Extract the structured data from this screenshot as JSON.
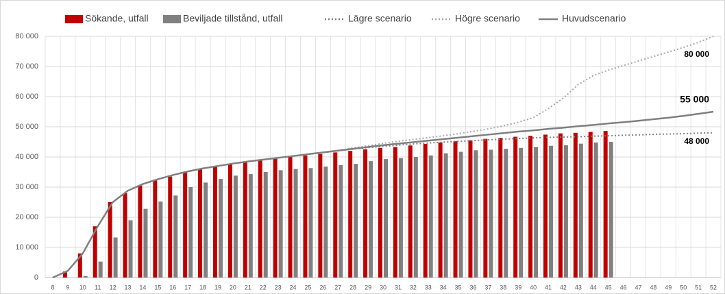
{
  "chart_data": {
    "type": "bar",
    "categories": [
      "8",
      "9",
      "10",
      "11",
      "12",
      "13",
      "14",
      "15",
      "16",
      "17",
      "18",
      "19",
      "20",
      "21",
      "22",
      "23",
      "24",
      "25",
      "26",
      "27",
      "28",
      "29",
      "30",
      "31",
      "32",
      "33",
      "34",
      "35",
      "36",
      "37",
      "38",
      "39",
      "40",
      "41",
      "42",
      "43",
      "44",
      "45",
      "46",
      "47",
      "48",
      "49",
      "50",
      "51",
      "52"
    ],
    "ylim": [
      0,
      80000
    ],
    "yticks": [
      0,
      {
        "value": 10000,
        "label": "10 000"
      },
      {
        "value": 20000,
        "label": "20 000"
      },
      {
        "value": 30000,
        "label": "30 000"
      },
      {
        "value": 40000,
        "label": "40 000"
      },
      {
        "value": 50000,
        "label": "50 000"
      },
      {
        "value": 60000,
        "label": "60 000"
      },
      {
        "value": 70000,
        "label": "70 000"
      },
      {
        "value": 80000,
        "label": "80 000"
      }
    ],
    "grid": true,
    "legend": "top",
    "series": [
      {
        "name": "Sökande, utfall",
        "type": "bar",
        "color": "#c00000",
        "values": [
          null,
          2000,
          8000,
          17000,
          25000,
          28000,
          30500,
          32500,
          33500,
          35000,
          36000,
          37000,
          37800,
          38300,
          39000,
          39500,
          40000,
          40500,
          41000,
          41500,
          42000,
          42500,
          43000,
          43300,
          43800,
          44300,
          44800,
          45200,
          45500,
          46000,
          46300,
          46700,
          47000,
          47400,
          47800,
          48000,
          48300,
          48600,
          null,
          null,
          null,
          null,
          null,
          null,
          null
        ]
      },
      {
        "name": "Beviljade tillstånd, utfall",
        "type": "bar",
        "color": "#808080",
        "values": [
          null,
          0,
          500,
          5300,
          13300,
          19000,
          22800,
          25200,
          27200,
          30000,
          31500,
          32700,
          33800,
          34300,
          35000,
          35600,
          36000,
          36300,
          36800,
          37300,
          37700,
          38600,
          39300,
          39600,
          40000,
          40500,
          41200,
          41700,
          42200,
          42400,
          42700,
          43000,
          43300,
          43700,
          43900,
          44400,
          44800,
          45000,
          null,
          null,
          null,
          null,
          null,
          null,
          null
        ]
      },
      {
        "name": "Lägre scenario",
        "type": "line",
        "line_style": "dotted",
        "color": "#7f7f7f",
        "values": [
          0,
          2200,
          8000,
          17000,
          25000,
          28800,
          31000,
          32600,
          34000,
          35200,
          36200,
          37000,
          37800,
          38500,
          39100,
          39700,
          40300,
          40900,
          41500,
          42000,
          42600,
          43100,
          43500,
          43900,
          44300,
          44600,
          44900,
          45200,
          45400,
          45700,
          45900,
          46100,
          46300,
          46500,
          46600,
          46700,
          46900,
          47000,
          47200,
          47300,
          47500,
          47600,
          47700,
          47900,
          48000
        ],
        "value_labels": [
          null,
          null,
          null,
          null,
          null,
          null,
          null,
          null,
          null,
          null,
          null,
          null,
          null,
          null,
          null,
          null,
          null,
          null,
          null,
          null,
          null,
          null,
          null,
          null,
          null,
          null,
          null,
          null,
          null,
          null,
          null,
          null,
          null,
          null,
          null,
          null,
          null,
          null,
          null,
          null,
          null,
          null,
          null,
          null,
          "48 000"
        ]
      },
      {
        "name": "Högre scenario",
        "type": "line",
        "line_style": "dotted",
        "color": "#a6a6a6",
        "values": [
          0,
          2200,
          8000,
          17000,
          25000,
          28800,
          31000,
          32600,
          34000,
          35200,
          36200,
          37000,
          37800,
          38500,
          39100,
          39700,
          40300,
          40900,
          41500,
          42100,
          43000,
          43700,
          44500,
          45200,
          45800,
          46400,
          47000,
          47700,
          48500,
          49300,
          50300,
          51500,
          53000,
          56000,
          59500,
          64000,
          67000,
          68800,
          70300,
          71800,
          73300,
          74800,
          76300,
          78000,
          80000
        ],
        "value_labels": [
          null,
          null,
          null,
          null,
          null,
          null,
          null,
          null,
          null,
          null,
          null,
          null,
          null,
          null,
          null,
          null,
          null,
          null,
          null,
          null,
          null,
          null,
          null,
          null,
          null,
          null,
          null,
          null,
          null,
          null,
          null,
          null,
          null,
          null,
          null,
          null,
          null,
          null,
          null,
          null,
          null,
          null,
          null,
          null,
          "80 000"
        ]
      },
      {
        "name": "Huvudscenario",
        "type": "line",
        "line_style": "solid",
        "color": "#7f7f7f",
        "values": [
          0,
          2200,
          8000,
          17000,
          25000,
          28800,
          31000,
          32600,
          34000,
          35200,
          36200,
          37000,
          37800,
          38500,
          39100,
          39700,
          40300,
          40900,
          41500,
          42100,
          42700,
          43300,
          43900,
          44400,
          44900,
          45400,
          45900,
          46400,
          46900,
          47400,
          47900,
          48400,
          48800,
          49300,
          49700,
          50200,
          50600,
          51100,
          51500,
          52000,
          52500,
          53000,
          53600,
          54300,
          55000
        ],
        "value_labels": [
          null,
          null,
          null,
          null,
          null,
          null,
          null,
          null,
          null,
          null,
          null,
          null,
          null,
          null,
          null,
          null,
          null,
          null,
          null,
          null,
          null,
          null,
          null,
          null,
          null,
          null,
          null,
          null,
          null,
          null,
          null,
          null,
          null,
          null,
          null,
          null,
          null,
          null,
          null,
          null,
          null,
          null,
          null,
          null,
          "55 000"
        ]
      }
    ]
  }
}
